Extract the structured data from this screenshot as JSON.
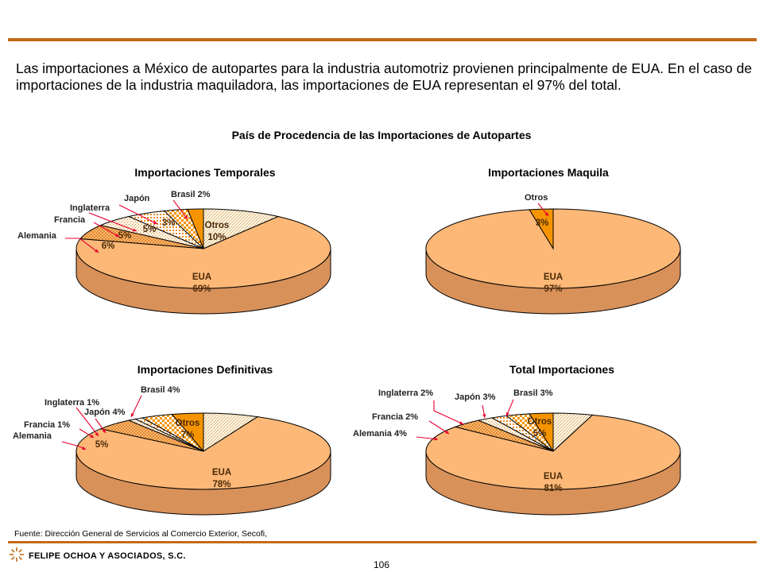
{
  "intro_text": "Las importaciones a México de autopartes para la industria automotriz provienen principalmente de EUA. En el caso de importaciones de la industria maquiladora, las importaciones  de EUA representan el 97% del total.",
  "main_title": "País de Procedencia de las Importaciones de Autopartes",
  "colors": {
    "rule": "#c26b17",
    "eua": "#fdb877",
    "eua_side": "#d9915a",
    "dark_orange": "#f59400",
    "outline": "#000000"
  },
  "chart_data": [
    {
      "type": "pie",
      "title": "Importaciones Temporales",
      "slices": [
        {
          "name": "EUA",
          "value": 69,
          "label": "EUA\n69%",
          "fill": "solid-light"
        },
        {
          "name": "Alemania",
          "value": 6,
          "label": "6%",
          "callout": "Alemania",
          "fill": "pattern-dense"
        },
        {
          "name": "Francia",
          "value": 5,
          "label": "5%",
          "callout": "Francia",
          "fill": "pattern-light"
        },
        {
          "name": "Inglaterra",
          "value": 5,
          "label": "5%",
          "callout": "Inglaterra",
          "fill": "pattern-dots"
        },
        {
          "name": "Japón",
          "value": 3,
          "label": "3%",
          "callout": "Japón",
          "fill": "pattern-checker"
        },
        {
          "name": "Brasil",
          "value": 2,
          "label": "",
          "callout": "Brasil 2%",
          "fill": "solid-dark"
        },
        {
          "name": "Otros",
          "value": 10,
          "label": "Otros\n10%",
          "fill": "pattern-hatch"
        }
      ]
    },
    {
      "type": "pie",
      "title": "Importaciones Maquila",
      "slices": [
        {
          "name": "EUA",
          "value": 97,
          "label": "EUA\n97%",
          "fill": "solid-light"
        },
        {
          "name": "Otros",
          "value": 3,
          "label": "3%",
          "callout": "Otros",
          "fill": "solid-dark"
        }
      ]
    },
    {
      "type": "pie",
      "title": "Importaciones Definitivas",
      "slices": [
        {
          "name": "EUA",
          "value": 78,
          "label": "EUA\n78%",
          "fill": "solid-light"
        },
        {
          "name": "Alemania",
          "value": 5,
          "label": "5%",
          "callout": "Alemania",
          "fill": "pattern-dense"
        },
        {
          "name": "Francia",
          "value": 1,
          "label": "",
          "callout": "Francia 1%",
          "fill": "pattern-light"
        },
        {
          "name": "Inglaterra",
          "value": 1,
          "label": "",
          "callout": "Inglaterra 1%",
          "fill": "pattern-dots"
        },
        {
          "name": "Japón",
          "value": 4,
          "label": "",
          "callout": "Japón 4%",
          "fill": "pattern-checker"
        },
        {
          "name": "Brasil",
          "value": 4,
          "label": "",
          "callout": "Brasil 4%",
          "fill": "solid-dark"
        },
        {
          "name": "Otros",
          "value": 7,
          "label": "Otros\n7%",
          "fill": "pattern-hatch"
        }
      ]
    },
    {
      "type": "pie",
      "title": "Total Importaciones",
      "slices": [
        {
          "name": "EUA",
          "value": 81,
          "label": "EUA\n81%",
          "fill": "solid-light"
        },
        {
          "name": "Alemania",
          "value": 4,
          "label": "",
          "callout": "Alemania 4%",
          "fill": "pattern-dense"
        },
        {
          "name": "Francia",
          "value": 2,
          "label": "",
          "callout": "Francia 2%",
          "fill": "pattern-light"
        },
        {
          "name": "Inglaterra",
          "value": 2,
          "label": "",
          "callout": "Inglaterra 2%",
          "fill": "pattern-dots"
        },
        {
          "name": "Japón",
          "value": 3,
          "label": "",
          "callout": "Japón 3%",
          "fill": "pattern-checker"
        },
        {
          "name": "Brasil",
          "value": 3,
          "label": "",
          "callout": "Brasil 3%",
          "fill": "solid-dark"
        },
        {
          "name": "Otros",
          "value": 5,
          "label": "Otros\n5%",
          "fill": "pattern-hatch"
        }
      ]
    }
  ],
  "source_text": "Fuente: Dirección General de Servicios al Comercio Exterior, Secofi,",
  "company_name": "FELIPE OCHOA Y ASOCIADOS, S.C.",
  "page_number": "106"
}
